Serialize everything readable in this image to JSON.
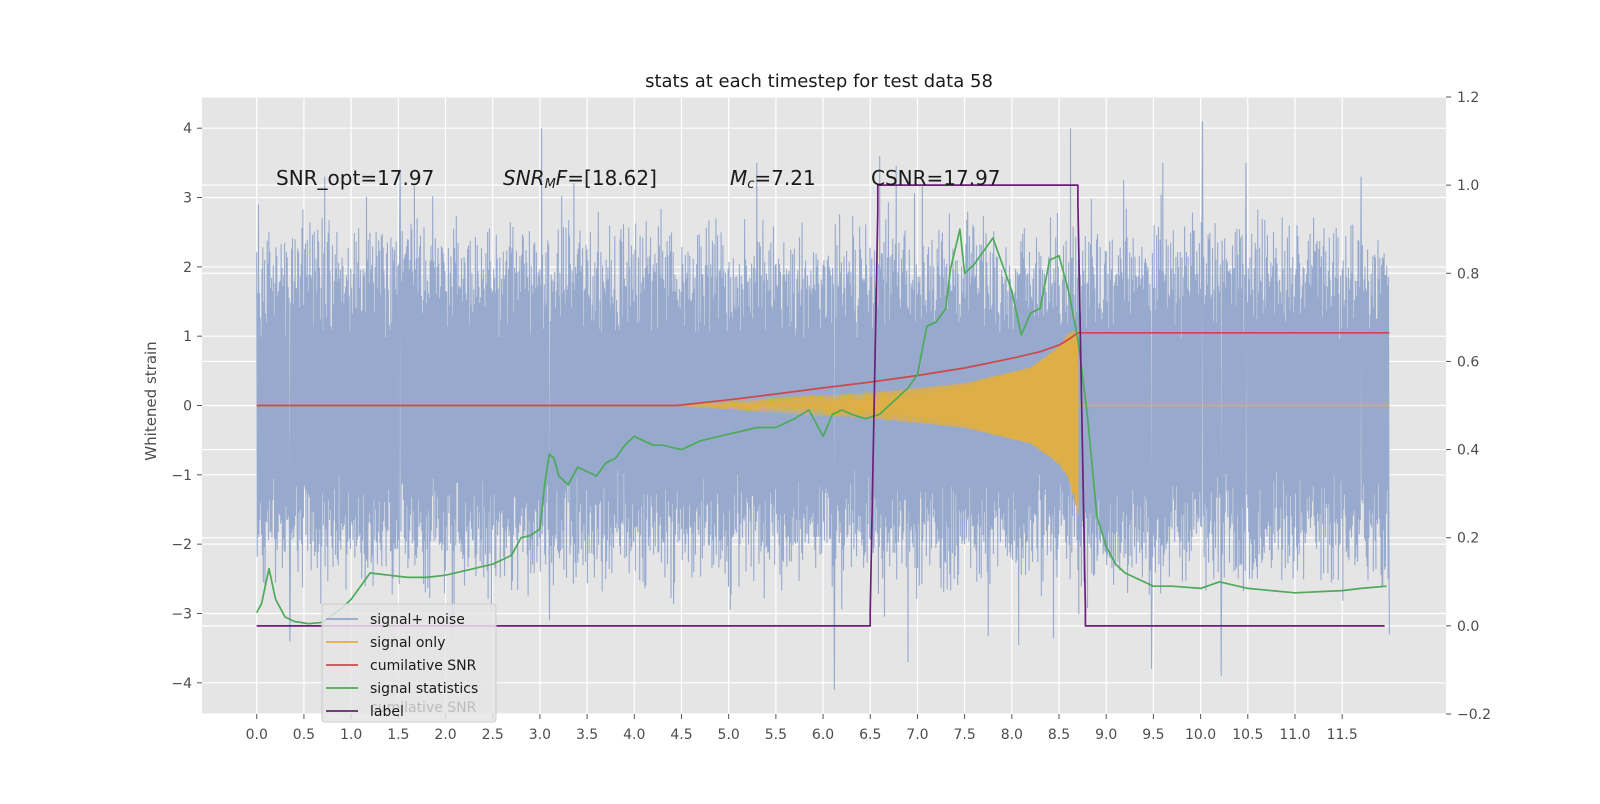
{
  "chart_data": {
    "type": "line",
    "title": "stats at each timestep for test data 58",
    "ylabel": "Whitened strain",
    "xlim": [
      -0.58,
      12.6
    ],
    "ylim": [
      -4.45,
      4.45
    ],
    "y2lim": [
      -0.2,
      1.2
    ],
    "xticks": [
      0.0,
      0.5,
      1.0,
      1.5,
      2.0,
      2.5,
      3.0,
      3.5,
      4.0,
      4.5,
      5.0,
      5.5,
      6.0,
      6.5,
      7.0,
      7.5,
      8.0,
      8.5,
      9.0,
      9.5,
      10.0,
      10.5,
      11.0,
      11.5
    ],
    "xtick_labels": [
      "0.0",
      "0.5",
      "1.0",
      "1.5",
      "2.0",
      "2.5",
      "3.0",
      "3.5",
      "4.0",
      "4.5",
      "5.0",
      "5.5",
      "6.0",
      "6.5",
      "7.0",
      "7.5",
      "8.0",
      "8.5",
      "9.0",
      "9.5",
      "10.0",
      "10.5",
      "11.0",
      "11.5"
    ],
    "yticks": [
      4,
      3,
      2,
      1,
      0,
      -1,
      -2,
      -3,
      -4
    ],
    "ytick_labels": [
      "4",
      "3",
      "2",
      "1",
      "0",
      "−1",
      "−2",
      "−3",
      "−4"
    ],
    "y2ticks": [
      1.2,
      1.0,
      0.8,
      0.6,
      0.4,
      0.2,
      0.0,
      -0.2
    ],
    "y2tick_labels": [
      "1.2",
      "1.0",
      "0.8",
      "0.6",
      "0.4",
      "0.2",
      "0.0",
      "−0.2"
    ],
    "grid": true,
    "legend_position": "lower-left",
    "annotations": [
      {
        "parts": [
          {
            "text": "SNR_opt=17.97",
            "style": "normal"
          }
        ]
      },
      {
        "parts": [
          {
            "text": "SNR",
            "style": "italic"
          },
          {
            "text": "M",
            "style": "italic-sub"
          },
          {
            "text": "F",
            "style": "italic"
          },
          {
            "text": "=[18.62]",
            "style": "normal"
          }
        ]
      },
      {
        "parts": [
          {
            "text": "M",
            "style": "italic"
          },
          {
            "text": "c",
            "style": "italic-sub"
          },
          {
            "text": "=7.21",
            "style": "normal"
          }
        ]
      },
      {
        "parts": [
          {
            "text": "CSNR=17.97",
            "style": "normal"
          }
        ]
      }
    ],
    "legend_hidden_text": "cumilative SNR",
    "series": [
      {
        "name": "signal+ noise",
        "axis": "left",
        "color": "#92a6cc",
        "x_range": [
          0.0,
          12.0
        ],
        "envelope_upper": 2.4,
        "envelope_lower": -2.4,
        "peaks_upper": [
          [
            0.02,
            2.9
          ],
          [
            0.72,
            3.3
          ],
          [
            1.52,
            3.4
          ],
          [
            3.02,
            4.0
          ],
          [
            5.3,
            3.5
          ],
          [
            6.6,
            3.6
          ],
          [
            8.62,
            4.0
          ],
          [
            9.6,
            3.5
          ],
          [
            10.02,
            4.1
          ],
          [
            10.48,
            3.5
          ],
          [
            11.7,
            3.3
          ]
        ],
        "peaks_lower": [
          [
            0.35,
            -3.4
          ],
          [
            3.1,
            -3.1
          ],
          [
            6.12,
            -4.1
          ],
          [
            6.9,
            -3.7
          ],
          [
            9.48,
            -3.8
          ],
          [
            10.22,
            -3.9
          ],
          [
            12.0,
            -3.3
          ]
        ]
      },
      {
        "name": "signal only",
        "axis": "left",
        "color": "#e5ae38",
        "chirp_start": 4.45,
        "chirp_end": 8.7,
        "amplitude_upper": [
          [
            4.45,
            0.0
          ],
          [
            5.5,
            0.1
          ],
          [
            6.5,
            0.18
          ],
          [
            7.5,
            0.32
          ],
          [
            8.2,
            0.55
          ],
          [
            8.5,
            0.85
          ],
          [
            8.6,
            1.05
          ],
          [
            8.7,
            1.1
          ],
          [
            8.72,
            0.0
          ]
        ],
        "amplitude_lower": [
          [
            4.45,
            0.0
          ],
          [
            5.5,
            -0.1
          ],
          [
            6.5,
            -0.18
          ],
          [
            7.5,
            -0.32
          ],
          [
            8.2,
            -0.55
          ],
          [
            8.5,
            -0.85
          ],
          [
            8.6,
            -1.05
          ],
          [
            8.7,
            -1.6
          ],
          [
            8.72,
            0.0
          ]
        ]
      },
      {
        "name": "cumilative SNR",
        "axis": "right",
        "color": "#d0474b",
        "x": [
          0.0,
          4.45,
          5.0,
          5.5,
          6.0,
          6.5,
          7.0,
          7.5,
          8.0,
          8.3,
          8.5,
          8.6,
          8.7,
          9.0,
          12.0
        ],
        "y": [
          0.5,
          0.5,
          0.513,
          0.526,
          0.54,
          0.553,
          0.568,
          0.585,
          0.607,
          0.622,
          0.637,
          0.65,
          0.665,
          0.665,
          0.665
        ]
      },
      {
        "name": "signal statistics",
        "axis": "right",
        "color": "#4caa58",
        "x": [
          0.0,
          0.05,
          0.13,
          0.2,
          0.3,
          0.4,
          0.55,
          0.7,
          0.9,
          1.0,
          1.1,
          1.2,
          1.4,
          1.6,
          1.8,
          2.0,
          2.2,
          2.5,
          2.7,
          2.8,
          2.9,
          3.0,
          3.05,
          3.1,
          3.15,
          3.2,
          3.3,
          3.4,
          3.5,
          3.6,
          3.7,
          3.8,
          3.9,
          4.0,
          4.1,
          4.2,
          4.3,
          4.4,
          4.5,
          4.7,
          4.9,
          5.1,
          5.3,
          5.5,
          5.7,
          5.85,
          6.0,
          6.1,
          6.2,
          6.3,
          6.45,
          6.6,
          6.7,
          6.8,
          6.9,
          7.0,
          7.1,
          7.2,
          7.3,
          7.35,
          7.45,
          7.5,
          7.6,
          7.7,
          7.8,
          7.9,
          8.0,
          8.1,
          8.2,
          8.3,
          8.4,
          8.5,
          8.6,
          8.7,
          8.8,
          8.9,
          9.0,
          9.1,
          9.2,
          9.3,
          9.5,
          9.7,
          10.0,
          10.2,
          10.5,
          11.0,
          11.5,
          11.7,
          11.97
        ],
        "y": [
          0.03,
          0.05,
          0.13,
          0.06,
          0.02,
          0.01,
          0.005,
          0.008,
          0.04,
          0.06,
          0.09,
          0.12,
          0.115,
          0.11,
          0.11,
          0.115,
          0.125,
          0.14,
          0.16,
          0.2,
          0.205,
          0.22,
          0.32,
          0.39,
          0.38,
          0.34,
          0.32,
          0.36,
          0.35,
          0.34,
          0.37,
          0.38,
          0.41,
          0.43,
          0.42,
          0.41,
          0.41,
          0.405,
          0.4,
          0.42,
          0.43,
          0.44,
          0.45,
          0.45,
          0.47,
          0.49,
          0.43,
          0.48,
          0.49,
          0.48,
          0.47,
          0.48,
          0.5,
          0.52,
          0.54,
          0.57,
          0.68,
          0.69,
          0.72,
          0.81,
          0.9,
          0.8,
          0.82,
          0.85,
          0.88,
          0.82,
          0.76,
          0.66,
          0.71,
          0.72,
          0.83,
          0.84,
          0.76,
          0.65,
          0.48,
          0.25,
          0.18,
          0.14,
          0.12,
          0.11,
          0.09,
          0.09,
          0.085,
          0.1,
          0.085,
          0.075,
          0.08,
          0.085,
          0.09
        ]
      },
      {
        "name": "label",
        "axis": "right",
        "color": "#6c1e78",
        "x": [
          0.0,
          6.5,
          6.5,
          6.58,
          6.58,
          8.7,
          8.7,
          8.78,
          8.78,
          11.95
        ],
        "y": [
          0.0,
          0.0,
          0.03,
          0.94,
          1.0,
          1.0,
          0.96,
          0.04,
          0.0,
          0.0
        ]
      }
    ]
  }
}
